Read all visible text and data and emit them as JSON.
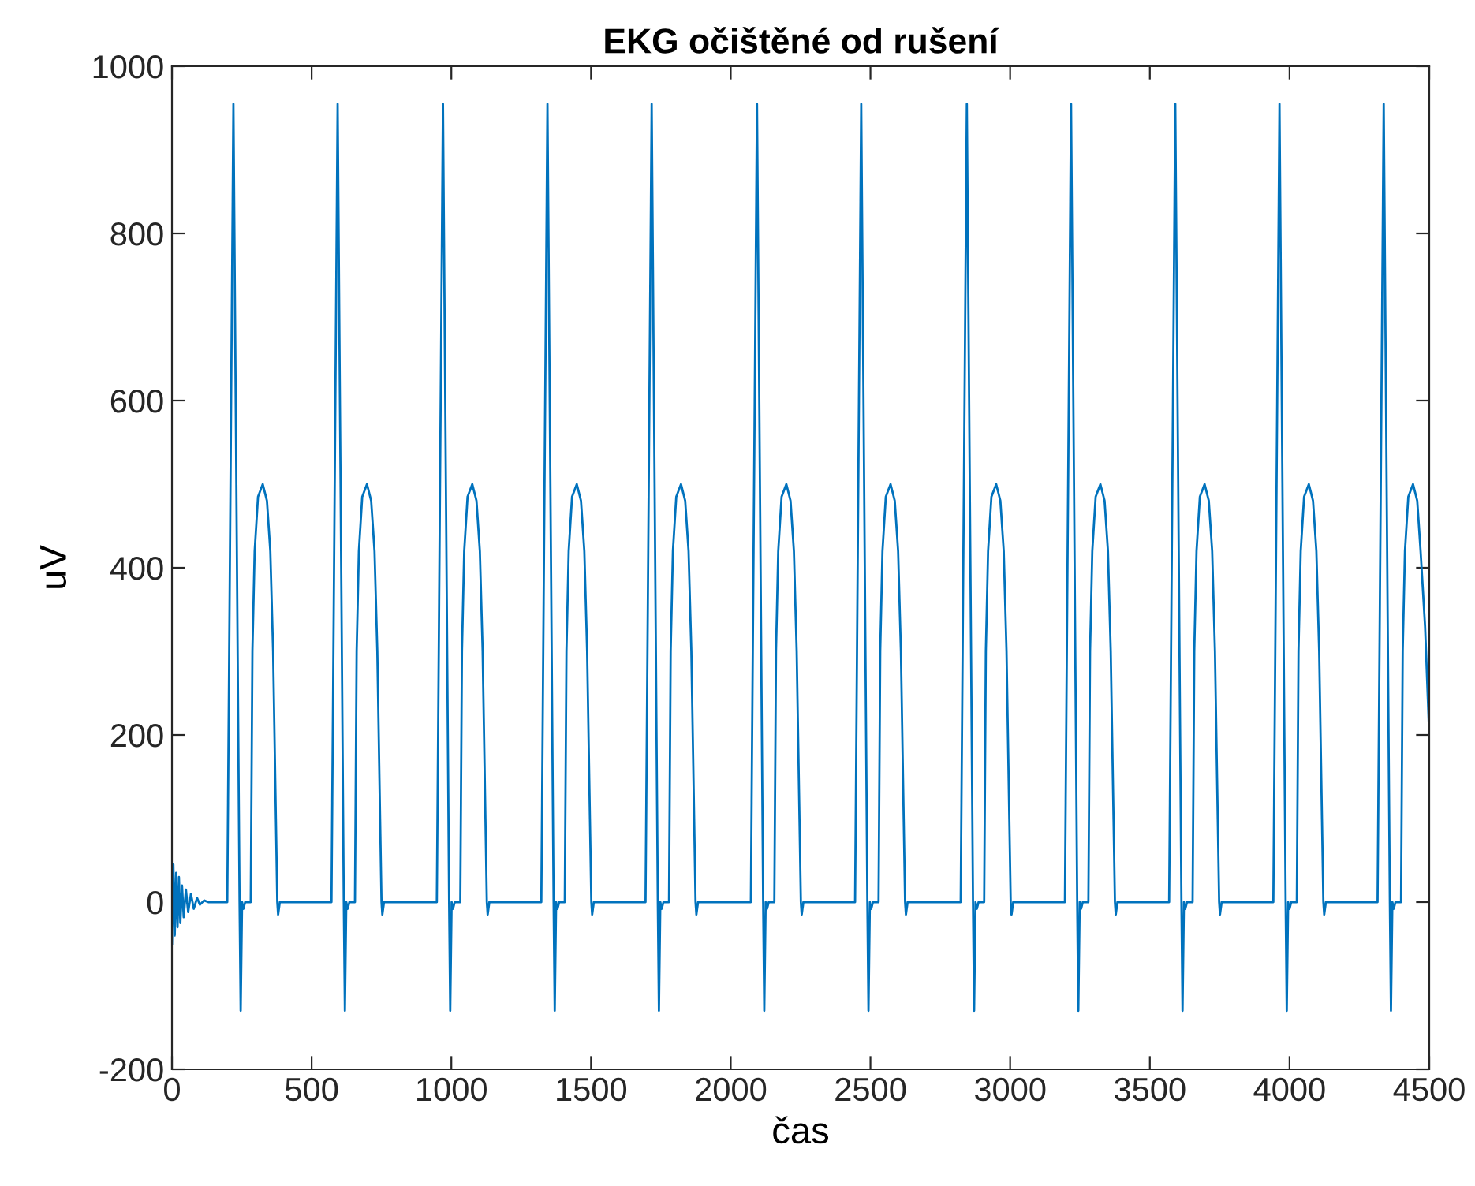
{
  "chart_data": {
    "type": "line",
    "title": "EKG očištěné od rušení",
    "xlabel": "čas",
    "ylabel": "uV",
    "xlim": [
      0,
      4500
    ],
    "xticks": [
      0,
      500,
      1000,
      1500,
      2000,
      2500,
      3000,
      3500,
      4000,
      4500
    ],
    "ylim": [
      -200,
      1000
    ],
    "yticks": [
      -200,
      0,
      200,
      400,
      600,
      800,
      1000
    ],
    "grid": false,
    "marker": "none",
    "line_style": "solid",
    "series": [
      {
        "color": "#0072bd",
        "x": [
          0,
          5,
          10,
          15,
          20,
          25,
          30,
          36,
          42,
          50,
          58,
          68,
          78,
          90,
          100,
          115,
          130,
          198,
          220,
          242,
          246,
          251,
          256,
          262,
          282,
          288,
          296,
          308,
          325,
          340,
          352,
          362,
          372,
          377,
          380,
          386,
          571,
          593,
          615,
          619,
          624,
          629,
          635,
          655,
          661,
          669,
          681,
          698,
          713,
          725,
          735,
          745,
          750,
          753,
          759,
          948,
          970,
          992,
          996,
          1001,
          1006,
          1012,
          1032,
          1038,
          1046,
          1058,
          1075,
          1090,
          1102,
          1112,
          1122,
          1127,
          1130,
          1136,
          1322,
          1344,
          1366,
          1370,
          1375,
          1380,
          1386,
          1406,
          1412,
          1420,
          1432,
          1449,
          1464,
          1476,
          1486,
          1496,
          1501,
          1504,
          1510,
          1695,
          1717,
          1739,
          1743,
          1748,
          1753,
          1759,
          1779,
          1785,
          1793,
          1805,
          1822,
          1837,
          1849,
          1859,
          1869,
          1874,
          1877,
          1883,
          2072,
          2094,
          2116,
          2120,
          2125,
          2130,
          2136,
          2156,
          2162,
          2170,
          2182,
          2199,
          2214,
          2226,
          2236,
          2246,
          2251,
          2254,
          2260,
          2445,
          2467,
          2489,
          2493,
          2498,
          2503,
          2509,
          2529,
          2535,
          2543,
          2555,
          2572,
          2587,
          2599,
          2609,
          2619,
          2624,
          2627,
          2633,
          2823,
          2845,
          2867,
          2871,
          2876,
          2881,
          2887,
          2907,
          2913,
          2921,
          2933,
          2950,
          2965,
          2977,
          2987,
          2997,
          3002,
          3005,
          3011,
          3196,
          3218,
          3240,
          3244,
          3249,
          3254,
          3260,
          3280,
          3286,
          3294,
          3306,
          3323,
          3338,
          3350,
          3360,
          3370,
          3375,
          3378,
          3384,
          3569,
          3591,
          3613,
          3617,
          3622,
          3627,
          3633,
          3653,
          3659,
          3667,
          3679,
          3696,
          3711,
          3723,
          3733,
          3743,
          3748,
          3751,
          3757,
          3942,
          3964,
          3986,
          3990,
          3995,
          4000,
          4006,
          4026,
          4032,
          4040,
          4052,
          4069,
          4084,
          4096,
          4106,
          4116,
          4121,
          4124,
          4130,
          4315,
          4337,
          4359,
          4363,
          4368,
          4373,
          4379,
          4399,
          4405,
          4413,
          4425,
          4442,
          4457,
          4469,
          4485,
          4500
        ],
        "values": [
          -50,
          45,
          -40,
          35,
          -30,
          30,
          -25,
          20,
          -18,
          15,
          -12,
          10,
          -8,
          5,
          -3,
          2,
          0,
          0,
          955,
          0,
          -130,
          0,
          -8,
          0,
          0,
          300,
          420,
          485,
          500,
          480,
          420,
          300,
          100,
          0,
          -15,
          0,
          0,
          955,
          0,
          -130,
          0,
          -8,
          0,
          0,
          300,
          420,
          485,
          500,
          480,
          420,
          300,
          100,
          0,
          -15,
          0,
          0,
          955,
          0,
          -130,
          0,
          -8,
          0,
          0,
          300,
          420,
          485,
          500,
          480,
          420,
          300,
          100,
          0,
          -15,
          0,
          0,
          955,
          0,
          -130,
          0,
          -8,
          0,
          0,
          300,
          420,
          485,
          500,
          480,
          420,
          300,
          100,
          0,
          -15,
          0,
          0,
          955,
          0,
          -130,
          0,
          -8,
          0,
          0,
          300,
          420,
          485,
          500,
          480,
          420,
          300,
          100,
          0,
          -15,
          0,
          0,
          955,
          0,
          -130,
          0,
          -8,
          0,
          0,
          300,
          420,
          485,
          500,
          480,
          420,
          300,
          100,
          0,
          -15,
          0,
          0,
          955,
          0,
          -130,
          0,
          -8,
          0,
          0,
          300,
          420,
          485,
          500,
          480,
          420,
          300,
          100,
          0,
          -15,
          0,
          0,
          955,
          0,
          -130,
          0,
          -8,
          0,
          0,
          300,
          420,
          485,
          500,
          480,
          420,
          300,
          100,
          0,
          -15,
          0,
          0,
          955,
          0,
          -130,
          0,
          -8,
          0,
          0,
          300,
          420,
          485,
          500,
          480,
          420,
          300,
          100,
          0,
          -15,
          0,
          0,
          955,
          0,
          -130,
          0,
          -8,
          0,
          0,
          300,
          420,
          485,
          500,
          480,
          420,
          300,
          100,
          0,
          -15,
          0,
          0,
          955,
          0,
          -130,
          0,
          -8,
          0,
          0,
          300,
          420,
          485,
          500,
          480,
          420,
          300,
          100,
          0,
          -15,
          0,
          0,
          955,
          0,
          -130,
          0,
          -8,
          0,
          0,
          300,
          420,
          485,
          500,
          480,
          420,
          330,
          200
        ]
      }
    ]
  }
}
